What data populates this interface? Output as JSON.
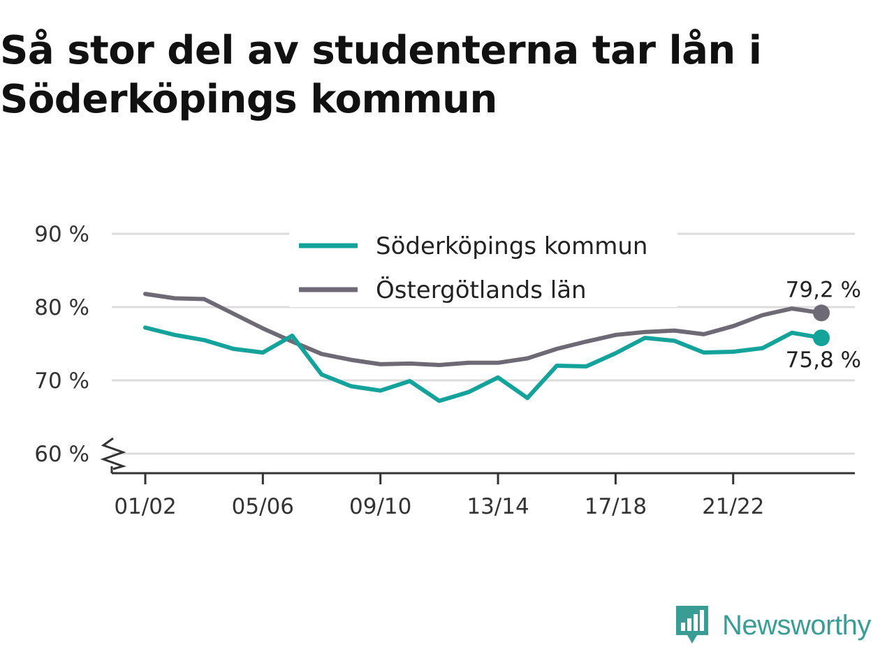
{
  "title": "Så stor del av studenterna tar lån i Söderköpings kommun",
  "brand": {
    "name": "Newsworthy",
    "icon": "newsworthy-logo-icon",
    "color": "#3a9d95"
  },
  "chart_data": {
    "type": "line",
    "xlabel": "",
    "ylabel": "",
    "ylim": [
      60,
      90
    ],
    "y_ticks": [
      {
        "value": 60,
        "label": "60 %"
      },
      {
        "value": 70,
        "label": "70 %"
      },
      {
        "value": 80,
        "label": "80 %"
      },
      {
        "value": 90,
        "label": "90 %"
      }
    ],
    "y_axis_break": true,
    "grid": true,
    "legend_position": "top-center",
    "x": [
      "01/02",
      "02/03",
      "03/04",
      "04/05",
      "05/06",
      "06/07",
      "07/08",
      "08/09",
      "09/10",
      "10/11",
      "11/12",
      "12/13",
      "13/14",
      "14/15",
      "15/16",
      "16/17",
      "17/18",
      "18/19",
      "19/20",
      "20/21",
      "21/22",
      "22/23",
      "23/24",
      "24/25"
    ],
    "x_tick_labels": [
      "01/02",
      "05/06",
      "09/10",
      "13/14",
      "17/18",
      "21/22"
    ],
    "series": [
      {
        "name": "Söderköpings kommun",
        "color": "#14a39a",
        "values": [
          77.2,
          76.2,
          75.5,
          74.3,
          73.8,
          76.1,
          70.8,
          69.2,
          68.6,
          69.9,
          67.2,
          68.4,
          70.4,
          67.6,
          72.0,
          71.9,
          73.7,
          75.8,
          75.4,
          73.8,
          73.9,
          74.4,
          76.5,
          75.8
        ],
        "end_label": "75,8 %"
      },
      {
        "name": "Östergötlands län",
        "color": "#6d6a75",
        "values": [
          81.8,
          81.2,
          81.1,
          79.1,
          77.1,
          75.3,
          73.6,
          72.8,
          72.2,
          72.3,
          72.1,
          72.4,
          72.4,
          73.0,
          74.3,
          75.3,
          76.2,
          76.6,
          76.8,
          76.3,
          77.4,
          78.9,
          79.8,
          79.2
        ],
        "end_label": "79,2 %"
      }
    ]
  }
}
